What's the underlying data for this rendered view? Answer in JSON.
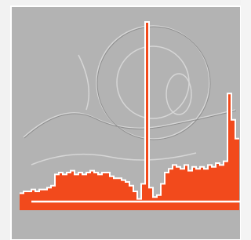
{
  "chart_data": {
    "type": "histogram",
    "values": [
      9,
      10,
      10,
      11,
      10,
      11,
      11,
      12,
      13,
      19,
      20,
      19,
      20,
      21,
      19,
      20,
      19,
      20,
      21,
      20,
      19,
      20,
      20,
      18,
      17,
      17,
      16,
      15,
      13,
      10,
      6,
      14,
      100,
      12,
      7,
      8,
      14,
      20,
      22,
      24,
      23,
      22,
      24,
      21,
      23,
      22,
      23,
      22,
      24,
      23,
      25,
      24,
      26,
      62,
      48,
      38
    ],
    "ylim": [
      0,
      100
    ],
    "color": "#f24a1c"
  }
}
